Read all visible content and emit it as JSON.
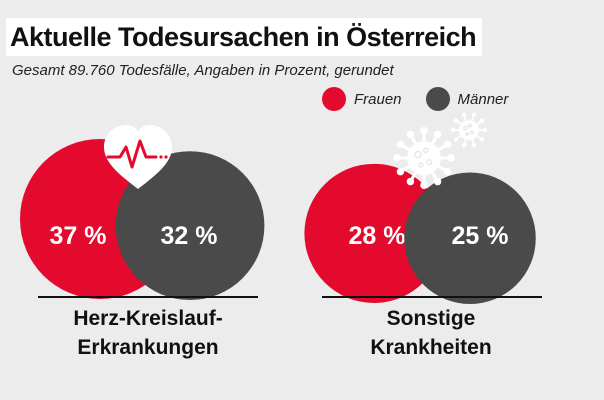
{
  "title": "Aktuelle Todesursachen in Österreich",
  "subtitle": "Gesamt 89.760 Todesfälle, Angaben in Prozent, gerundet",
  "legend": {
    "frauen": "Frauen",
    "maenner": "Männer"
  },
  "colors": {
    "frauen": "#e30a2d",
    "maenner": "#4a4a4a",
    "background": "#ececec"
  },
  "icons": [
    "heart-pulse-icon",
    "virus-icon"
  ],
  "chart_data": {
    "type": "bubble",
    "categories": [
      "Herz-Kreislauf-Erkrankungen",
      "Sonstige Krankheiten"
    ],
    "category_labels": [
      [
        "Herz-Kreislauf-",
        "Erkrankungen"
      ],
      [
        "Sonstige",
        "Krankheiten"
      ]
    ],
    "series": [
      {
        "name": "Frauen",
        "values": [
          37,
          28
        ],
        "labels": [
          "37 %",
          "28 %"
        ]
      },
      {
        "name": "Männer",
        "values": [
          32,
          25
        ],
        "labels": [
          "32 %",
          "25 %"
        ]
      }
    ],
    "unit": "%"
  }
}
